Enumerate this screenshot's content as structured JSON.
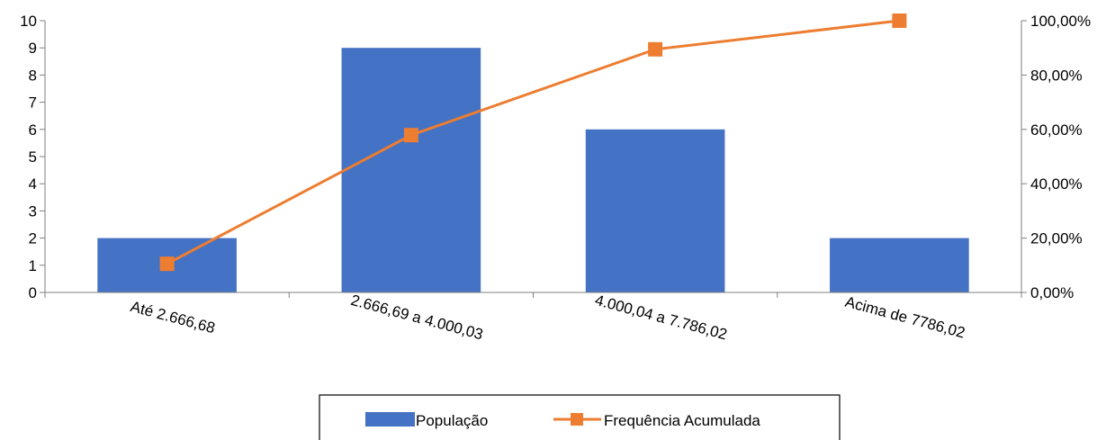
{
  "chart_data": {
    "type": "bar",
    "categories": [
      "Até 2.666,68",
      "2.666,69 a 4.000,03",
      "4.000,04 a 7.786,02",
      "Acima de 7786,02"
    ],
    "series": [
      {
        "name": "População",
        "type": "bar",
        "axis": "left",
        "color": "#4472C4",
        "values": [
          2,
          9,
          6,
          2
        ]
      },
      {
        "name": "Frequência Acumulada",
        "type": "line",
        "marker": "square",
        "axis": "right",
        "color": "#ED7D31",
        "values": [
          0.1053,
          0.5789,
          0.8947,
          1.0
        ]
      }
    ],
    "y_left": {
      "min": 0,
      "max": 10,
      "ticks": [
        0,
        1,
        2,
        3,
        4,
        5,
        6,
        7,
        8,
        9,
        10
      ]
    },
    "y_right": {
      "min": 0,
      "max": 1,
      "ticks": [
        0,
        0.2,
        0.4,
        0.6,
        0.8,
        1.0
      ],
      "tick_labels": [
        "0,00%",
        "20,00%",
        "40,00%",
        "60,00%",
        "80,00%",
        "100,00%"
      ]
    },
    "title": "",
    "xlabel": "",
    "ylabel": "",
    "grid": false,
    "legend": {
      "position": "bottom",
      "entries": [
        "População",
        "Frequência Acumulada"
      ]
    }
  }
}
